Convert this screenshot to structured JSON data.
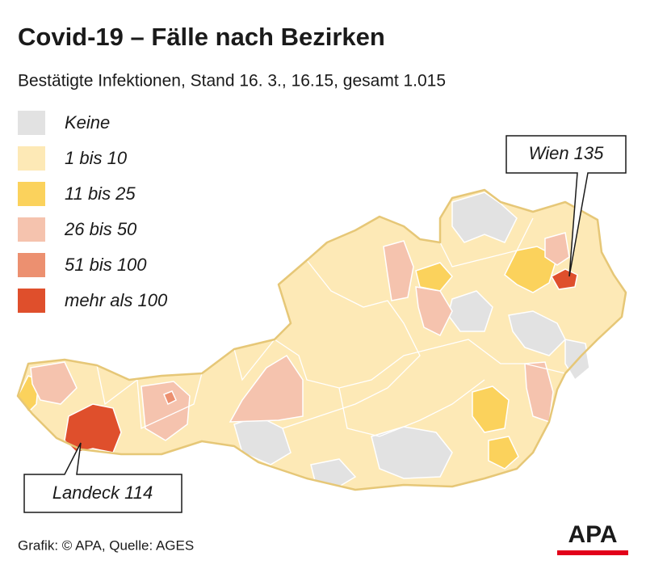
{
  "header": {
    "title": "Covid-19 – Fälle nach Bezirken",
    "subtitle": "Bestätigte Infektionen, Stand 16. 3., 16.15, gesamt 1.015"
  },
  "legend": [
    {
      "label": "Keine",
      "color": "#e2e2e2"
    },
    {
      "label": "1 bis 10",
      "color": "#fde9b6"
    },
    {
      "label": "11 bis 25",
      "color": "#fbd25c"
    },
    {
      "label": "26 bis 50",
      "color": "#f5c3ae"
    },
    {
      "label": "51 bis 100",
      "color": "#ec9070"
    },
    {
      "label": "mehr als 100",
      "color": "#df4f2c"
    }
  ],
  "callouts": [
    {
      "label": "Wien 135"
    },
    {
      "label": "Landeck 114"
    }
  ],
  "footer": {
    "source": "Grafik: © APA, Quelle: AGES",
    "logo": "APA"
  }
}
